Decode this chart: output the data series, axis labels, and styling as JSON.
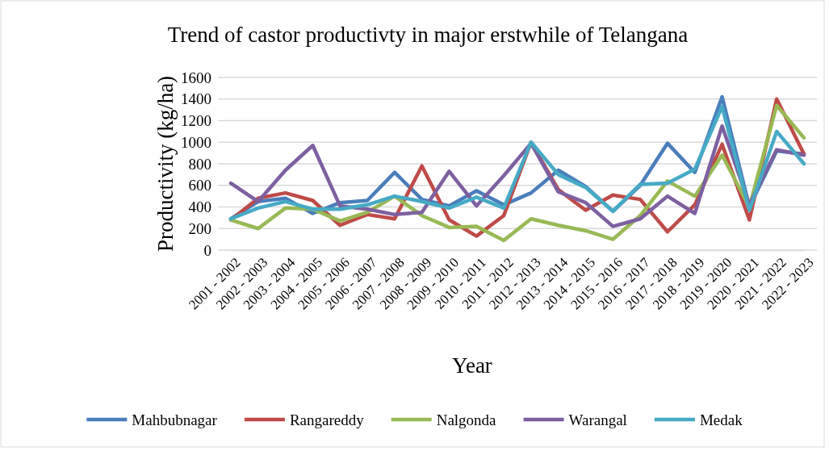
{
  "chart_data": {
    "type": "line",
    "title": "Trend of castor productivty in major erstwhile of Telangana",
    "xlabel": "Year",
    "ylabel": "Productivity (kg/ha)",
    "categories": [
      "2001 - 2002",
      "2002 - 2003",
      "2003 - 2004",
      "2004 - 2005",
      "2005 - 2006",
      "2006 - 2007",
      "2007 - 2008",
      "2008 - 2009",
      "2009 - 2010",
      "2010 - 2011",
      "2011 - 2012",
      "2012 - 2013",
      "2013 - 2014",
      "2014 - 2015",
      "2015 - 2016",
      "2016 - 2017",
      "2017 - 2018",
      "2018 - 2019",
      "2019 - 2020",
      "2020 - 2021",
      "2021 - 2022",
      "2022 - 2023"
    ],
    "series": [
      {
        "name": "Mahbubnagar",
        "color": "#4a7ebb",
        "values": [
          290,
          450,
          480,
          340,
          440,
          460,
          720,
          470,
          410,
          550,
          420,
          530,
          740,
          590,
          360,
          600,
          990,
          720,
          1420,
          400,
          920,
          890
        ]
      },
      {
        "name": "Rangareddy",
        "color": "#be4b48",
        "values": [
          280,
          480,
          530,
          460,
          230,
          330,
          290,
          780,
          280,
          130,
          320,
          1000,
          560,
          370,
          510,
          470,
          170,
          420,
          980,
          280,
          1400,
          890
        ]
      },
      {
        "name": "Nalgonda",
        "color": "#98b954",
        "values": [
          280,
          200,
          390,
          380,
          270,
          350,
          500,
          320,
          210,
          220,
          90,
          290,
          230,
          180,
          100,
          320,
          640,
          500,
          880,
          400,
          1340,
          1040
        ]
      },
      {
        "name": "Warangal",
        "color": "#7d60a0",
        "values": [
          620,
          450,
          740,
          970,
          410,
          380,
          330,
          350,
          730,
          410,
          690,
          990,
          540,
          440,
          220,
          290,
          500,
          340,
          1150,
          420,
          930,
          880
        ]
      },
      {
        "name": "Medak",
        "color": "#46aac5",
        "values": [
          290,
          390,
          450,
          380,
          380,
          420,
          500,
          450,
          390,
          490,
          390,
          1000,
          700,
          580,
          360,
          610,
          620,
          750,
          1330,
          370,
          1100,
          800
        ]
      }
    ],
    "ylim": [
      0,
      1600
    ],
    "yticks": [
      0,
      200,
      400,
      600,
      800,
      1000,
      1200,
      1400,
      1600
    ],
    "grid": "y",
    "legend": "bottom",
    "marker": "none",
    "line_style": "solid"
  }
}
